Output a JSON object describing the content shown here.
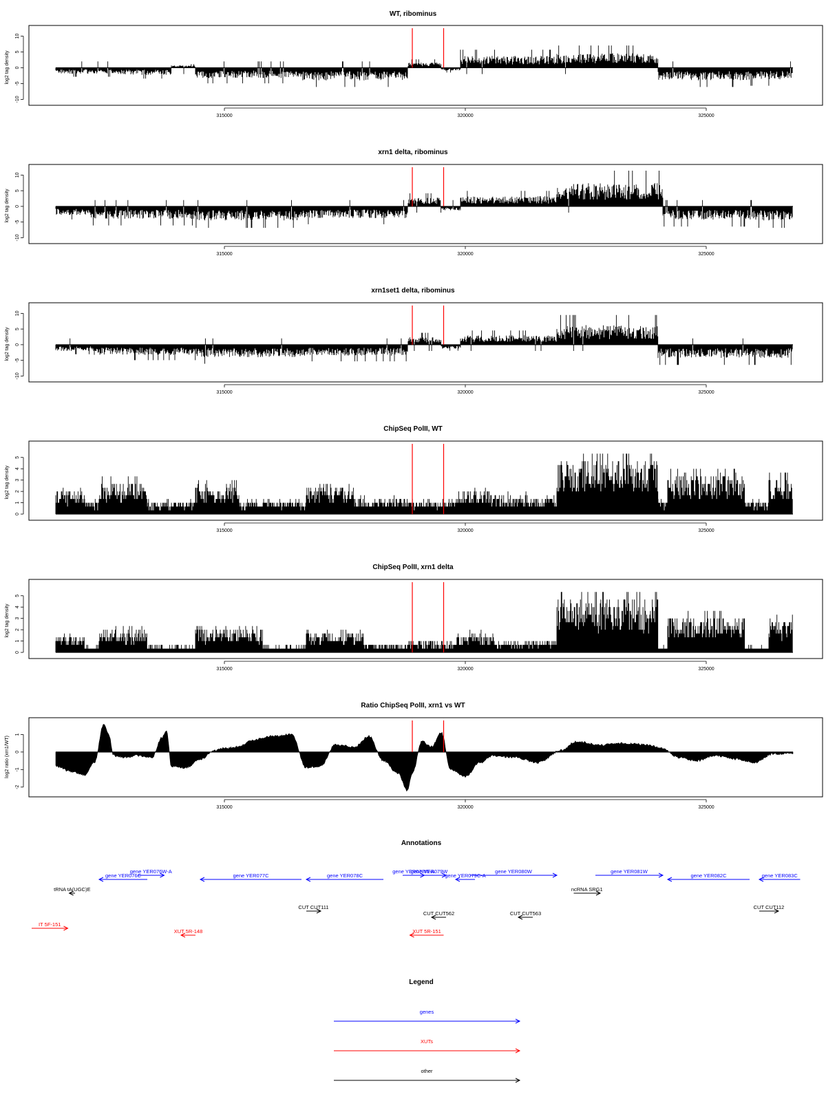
{
  "colors": {
    "gene": "#0000ff",
    "xut": "#ff0000",
    "other": "#000000",
    "marker": "#ff0000",
    "signal": "#000000"
  },
  "x_axis": {
    "range": [
      311500,
      326800
    ],
    "ticks": [
      315000,
      320000,
      325000
    ],
    "tick_labels": [
      "315000",
      "320000",
      "325000"
    ]
  },
  "markers": {
    "x": [
      318900,
      319550
    ]
  },
  "chart_data": [
    {
      "id": "wt",
      "type": "bar",
      "style": "signed-density",
      "title": "WT, ribominus",
      "ylabel": "log2 tag density",
      "ylim": [
        -11,
        12.5
      ],
      "yticks": [
        -10,
        -5,
        0,
        5,
        10
      ],
      "segments": [
        {
          "x": [
            311500,
            312800
          ],
          "y": -1.5
        },
        {
          "x": [
            312800,
            313900
          ],
          "y": -1.8
        },
        {
          "x": [
            313900,
            314400
          ],
          "y": 0.6
        },
        {
          "x": [
            314400,
            316600
          ],
          "y": -2.6
        },
        {
          "x": [
            316600,
            318800
          ],
          "y": -3.2
        },
        {
          "x": [
            318800,
            319500
          ],
          "y": 1.4
        },
        {
          "x": [
            319500,
            319900
          ],
          "y": -0.8
        },
        {
          "x": [
            319900,
            321900
          ],
          "y": 3.0
        },
        {
          "x": [
            321900,
            324000
          ],
          "y": 3.7
        },
        {
          "x": [
            324000,
            325900
          ],
          "y": -3.2
        },
        {
          "x": [
            325900,
            326800
          ],
          "y": -3.0
        }
      ]
    },
    {
      "id": "xrn1",
      "type": "bar",
      "style": "signed-density",
      "title": "xrn1 delta, ribominus",
      "ylabel": "log2 tag density",
      "ylim": [
        -11,
        12.5
      ],
      "yticks": [
        -10,
        -5,
        0,
        5,
        10
      ],
      "segments": [
        {
          "x": [
            311500,
            312200
          ],
          "y": -2.2
        },
        {
          "x": [
            312200,
            314400
          ],
          "y": -3.2
        },
        {
          "x": [
            314400,
            316600
          ],
          "y": -3.6
        },
        {
          "x": [
            316600,
            318800
          ],
          "y": -3.0
        },
        {
          "x": [
            318800,
            319500
          ],
          "y": 2.2
        },
        {
          "x": [
            319500,
            319900
          ],
          "y": -1.0
        },
        {
          "x": [
            319900,
            321900
          ],
          "y": 2.6
        },
        {
          "x": [
            321900,
            324100
          ],
          "y": 6.0
        },
        {
          "x": [
            324100,
            325900
          ],
          "y": -3.4
        },
        {
          "x": [
            325900,
            326800
          ],
          "y": -3.6
        }
      ]
    },
    {
      "id": "xrn1set1",
      "type": "bar",
      "style": "signed-density",
      "title": "xrn1set1 delta, ribominus",
      "ylabel": "log2 tag density",
      "ylim": [
        -11,
        12.5
      ],
      "yticks": [
        -10,
        -5,
        0,
        5,
        10
      ],
      "segments": [
        {
          "x": [
            311500,
            312300
          ],
          "y": -1.6
        },
        {
          "x": [
            312300,
            314400
          ],
          "y": -2.6
        },
        {
          "x": [
            314400,
            316600
          ],
          "y": -3.2
        },
        {
          "x": [
            316600,
            318800
          ],
          "y": -2.8
        },
        {
          "x": [
            318800,
            319500
          ],
          "y": 2.0
        },
        {
          "x": [
            319500,
            319900
          ],
          "y": -1.0
        },
        {
          "x": [
            319900,
            321900
          ],
          "y": 2.4
        },
        {
          "x": [
            321900,
            324000
          ],
          "y": 5.0
        },
        {
          "x": [
            324000,
            325900
          ],
          "y": -3.4
        },
        {
          "x": [
            325900,
            326800
          ],
          "y": -3.4
        }
      ]
    },
    {
      "id": "chip_wt",
      "type": "bar",
      "style": "positive-density",
      "title": "ChipSeq PolII, WT",
      "ylabel": "log2 tag density",
      "ylim": [
        -0.3,
        6.2
      ],
      "yticks": [
        0,
        1,
        2,
        3,
        4,
        5
      ],
      "segments": [
        {
          "x": [
            311500,
            312100
          ],
          "y": 1.8
        },
        {
          "x": [
            312100,
            312400
          ],
          "y": 1.0
        },
        {
          "x": [
            312400,
            313400
          ],
          "y": 2.4
        },
        {
          "x": [
            313400,
            314400
          ],
          "y": 1.0
        },
        {
          "x": [
            314400,
            315300
          ],
          "y": 2.2
        },
        {
          "x": [
            315300,
            316700
          ],
          "y": 1.0
        },
        {
          "x": [
            316700,
            317700
          ],
          "y": 2.0
        },
        {
          "x": [
            317700,
            318800
          ],
          "y": 1.2
        },
        {
          "x": [
            318800,
            319800
          ],
          "y": 1.0
        },
        {
          "x": [
            319800,
            320500
          ],
          "y": 1.8
        },
        {
          "x": [
            320500,
            321300
          ],
          "y": 1.4
        },
        {
          "x": [
            321300,
            321900
          ],
          "y": 1.2
        },
        {
          "x": [
            321900,
            324000
          ],
          "y": 4.0
        },
        {
          "x": [
            324000,
            324200
          ],
          "y": 1.0
        },
        {
          "x": [
            324200,
            325800
          ],
          "y": 3.0
        },
        {
          "x": [
            325800,
            326300
          ],
          "y": 1.0
        },
        {
          "x": [
            326300,
            326800
          ],
          "y": 2.6
        }
      ]
    },
    {
      "id": "chip_xrn1",
      "type": "bar",
      "style": "positive-density",
      "title": "ChipSeq PolII, xrn1 delta",
      "ylabel": "log2 tag density",
      "ylim": [
        -0.3,
        6.2
      ],
      "yticks": [
        0,
        1,
        2,
        3,
        4,
        5
      ],
      "segments": [
        {
          "x": [
            311500,
            312100
          ],
          "y": 1.2
        },
        {
          "x": [
            312100,
            312400
          ],
          "y": 0.5
        },
        {
          "x": [
            312400,
            313400
          ],
          "y": 1.8
        },
        {
          "x": [
            313400,
            314400
          ],
          "y": 0.5
        },
        {
          "x": [
            314400,
            315800
          ],
          "y": 1.8
        },
        {
          "x": [
            315800,
            316700
          ],
          "y": 0.5
        },
        {
          "x": [
            316700,
            317900
          ],
          "y": 1.6
        },
        {
          "x": [
            317900,
            318800
          ],
          "y": 0.6
        },
        {
          "x": [
            318800,
            319800
          ],
          "y": 0.8
        },
        {
          "x": [
            319800,
            320600
          ],
          "y": 1.4
        },
        {
          "x": [
            320600,
            321900
          ],
          "y": 0.8
        },
        {
          "x": [
            321900,
            324000
          ],
          "y": 4.0
        },
        {
          "x": [
            324000,
            324200
          ],
          "y": 0.4
        },
        {
          "x": [
            324200,
            325800
          ],
          "y": 2.6
        },
        {
          "x": [
            325800,
            326300
          ],
          "y": 0.4
        },
        {
          "x": [
            326300,
            326800
          ],
          "y": 2.4
        }
      ]
    },
    {
      "id": "ratio",
      "type": "area",
      "title": "Ratio ChipSeq PolII, xrn1 vs WT",
      "ylabel": "log2 ratio (xrn1/WT)",
      "ylim": [
        -2.4,
        1.8
      ],
      "yticks": [
        -2,
        -1,
        0,
        1
      ],
      "x": [
        311500,
        311800,
        312100,
        312300,
        312500,
        312600,
        312700,
        312900,
        313200,
        313500,
        313700,
        313800,
        313900,
        314200,
        314500,
        314800,
        315000,
        315300,
        315600,
        316000,
        316400,
        316700,
        317000,
        317300,
        317700,
        318000,
        318300,
        318600,
        318800,
        318900,
        319100,
        319300,
        319500,
        319700,
        320000,
        320300,
        320600,
        321000,
        321500,
        322000,
        322300,
        322800,
        323300,
        323800,
        324100,
        324400,
        324800,
        325200,
        325600,
        326000,
        326400,
        326800
      ],
      "y": [
        -0.8,
        -1.1,
        -1.3,
        -0.6,
        1.6,
        1.0,
        -0.2,
        -0.3,
        -0.2,
        -0.3,
        0.8,
        1.2,
        -0.8,
        -0.9,
        -0.4,
        0.1,
        0.2,
        0.3,
        0.7,
        0.9,
        1.0,
        -0.9,
        -0.8,
        0.4,
        0.3,
        0.9,
        -0.5,
        -1.2,
        -2.2,
        -1.2,
        0.6,
        0.3,
        1.1,
        -1.0,
        -1.4,
        -0.6,
        -0.2,
        -0.3,
        -0.6,
        0.1,
        0.6,
        0.4,
        0.5,
        0.4,
        0.2,
        -0.3,
        -0.5,
        -0.2,
        -0.4,
        -0.6,
        -0.1,
        -0.1
      ]
    }
  ],
  "annotations": {
    "title": "Annotations",
    "items": [
      {
        "label": "gene YER076W-A",
        "type": "gene",
        "strand": "+",
        "x": [
          313200,
          313750
        ],
        "row": 0
      },
      {
        "label": "gene YER076C",
        "type": "gene",
        "strand": "-",
        "x": [
          312400,
          313400
        ],
        "row": 1
      },
      {
        "label": "gene YER077C",
        "type": "gene",
        "strand": "-",
        "x": [
          314500,
          316600
        ],
        "row": 1
      },
      {
        "label": "gene YER078C",
        "type": "gene",
        "strand": "-",
        "x": [
          316700,
          318300
        ],
        "row": 1
      },
      {
        "label": "gene YER078W-A",
        "type": "gene",
        "strand": "+",
        "x": [
          318700,
          319150
        ],
        "row": 0
      },
      {
        "label": "gene YER079W",
        "type": "gene",
        "strand": "+",
        "x": [
          318900,
          319600
        ],
        "row": 0
      },
      {
        "label": "gene YER079C-A",
        "type": "gene",
        "strand": "-",
        "x": [
          319800,
          320200
        ],
        "row": 1
      },
      {
        "label": "gene YER080W",
        "type": "gene",
        "strand": "+",
        "x": [
          320100,
          321900
        ],
        "row": 0
      },
      {
        "label": "gene YER081W",
        "type": "gene",
        "strand": "+",
        "x": [
          322700,
          324100
        ],
        "row": 0
      },
      {
        "label": "gene YER082C",
        "type": "gene",
        "strand": "-",
        "x": [
          324200,
          325900
        ],
        "row": 1
      },
      {
        "label": "gene YER083C",
        "type": "gene",
        "strand": "-",
        "x": [
          326100,
          326950
        ],
        "row": 1
      },
      {
        "label": "tRNA tA(UGC)E",
        "type": "other",
        "strand": "-",
        "x": [
          311780,
          311900
        ],
        "row": 2
      },
      {
        "label": "ncRNA SRG1",
        "type": "other",
        "strand": "+",
        "x": [
          322250,
          322800
        ],
        "row": 2
      },
      {
        "label": "CUT CUT111",
        "type": "other",
        "strand": "+",
        "x": [
          316700,
          317000
        ],
        "row": 3
      },
      {
        "label": "CUT CUT562",
        "type": "other",
        "strand": "-",
        "x": [
          319300,
          319600
        ],
        "row": 4
      },
      {
        "label": "CUT CUT563",
        "type": "other",
        "strand": "-",
        "x": [
          321100,
          321400
        ],
        "row": 4
      },
      {
        "label": "CUT CUT112",
        "type": "other",
        "strand": "+",
        "x": [
          326100,
          326500
        ],
        "row": 3
      },
      {
        "label": "IT 5F-151",
        "type": "xut",
        "strand": "+",
        "x": [
          311000,
          311750
        ],
        "row": 5
      },
      {
        "label": "XUT 5R-148",
        "type": "xut",
        "strand": "-",
        "x": [
          314100,
          314400
        ],
        "row": 6
      },
      {
        "label": "XUT 5R-151",
        "type": "xut",
        "strand": "-",
        "x": [
          318850,
          319550
        ],
        "row": 6
      }
    ]
  },
  "legend": {
    "title": "Legend",
    "entries": [
      {
        "label": "genes",
        "type": "gene"
      },
      {
        "label": "XUTs",
        "type": "xut"
      },
      {
        "label": "other",
        "type": "other"
      }
    ]
  }
}
